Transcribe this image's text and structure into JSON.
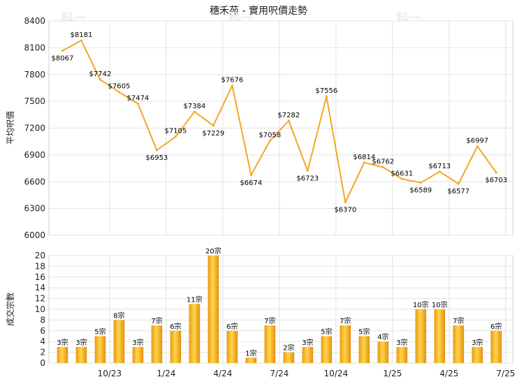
{
  "chart_data": [
    {
      "type": "line",
      "title": "穗禾苑 - 實用呎價走勢",
      "ylabel": "平均呎價",
      "ylim": [
        6000,
        8400
      ],
      "yticks": [
        6000,
        6300,
        6600,
        6900,
        7200,
        7500,
        7800,
        8100,
        8400
      ],
      "grid": true,
      "color": "#f5a623",
      "series": [
        {
          "values": [
            8067,
            8181,
            7742,
            7605,
            7474,
            6953,
            7105,
            7384,
            7229,
            7676,
            6674,
            7058,
            7282,
            6723,
            7556,
            6370,
            6814,
            6762,
            6631,
            6589,
            6713,
            6577,
            6997,
            6703
          ],
          "labels": [
            "$8067",
            "$8181",
            "$7742",
            "$7605",
            "$7474",
            "$6953",
            "$7105",
            "$7384",
            "$7229",
            "$7676",
            "$6674",
            "$7058",
            "$7282",
            "$6723",
            "$7556",
            "$6370",
            "$6814",
            "$6762",
            "$6631",
            "$6589",
            "$6713",
            "$6577",
            "$6997",
            "$6703"
          ]
        }
      ]
    },
    {
      "type": "bar",
      "ylabel": "成交宗數",
      "ylim": [
        0,
        20
      ],
      "yticks": [
        0,
        2,
        4,
        6,
        8,
        10,
        12,
        14,
        16,
        18,
        20
      ],
      "grid": true,
      "color": "#f5a623",
      "values": [
        3,
        3,
        5,
        8,
        3,
        7,
        6,
        11,
        20,
        6,
        1,
        7,
        2,
        3,
        5,
        7,
        5,
        4,
        3,
        10,
        10,
        7,
        3,
        6
      ],
      "labels": [
        "3宗",
        "3宗",
        "5宗",
        "8宗",
        "3宗",
        "7宗",
        "6宗",
        "11宗",
        "20宗",
        "6宗",
        "1宗",
        "7宗",
        "2宗",
        "3宗",
        "5宗",
        "7宗",
        "5宗",
        "4宗",
        "3宗",
        "10宗",
        "10宗",
        "7宗",
        "3宗",
        "6宗"
      ],
      "xticks": [
        {
          "index": 2.5,
          "label": "10/23"
        },
        {
          "index": 5.5,
          "label": "1/24"
        },
        {
          "index": 8.5,
          "label": "4/24"
        },
        {
          "index": 11.5,
          "label": "7/24"
        },
        {
          "index": 14.5,
          "label": "10/24"
        },
        {
          "index": 17.5,
          "label": "1/25"
        },
        {
          "index": 20.5,
          "label": "4/25"
        },
        {
          "index": 23.5,
          "label": "7/25"
        }
      ]
    }
  ],
  "watermark": "科一"
}
